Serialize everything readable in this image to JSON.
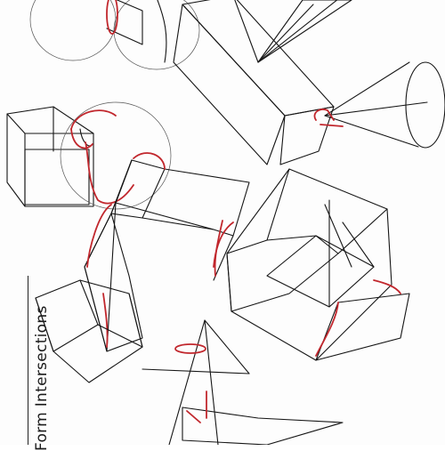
{
  "sheet": {
    "title": "Form Intersections"
  },
  "colors": {
    "ink": "#151515",
    "accent": "#c1272d",
    "paper": "#fdfdfd"
  }
}
